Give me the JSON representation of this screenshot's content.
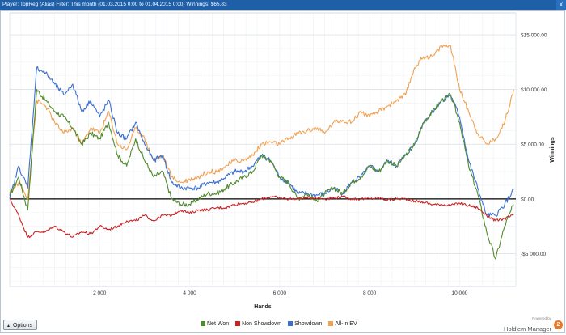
{
  "window": {
    "title": "Player: TopReg (Alias)  Filter: This month (01.03.2015 0:00 to 01.04.2015 0:00)  Winnings: $65.83",
    "close_label": "x"
  },
  "footer": {
    "options_label": "Options",
    "powered_by": "Powered by",
    "brand": "Hold'em Manager",
    "brand_badge": "2"
  },
  "chart_data": {
    "type": "line",
    "xlabel": "Hands",
    "ylabel": "Winnings",
    "xlim": [
      0,
      11250
    ],
    "ylim": [
      -8000,
      17000
    ],
    "x_ticks": [
      2000,
      4000,
      6000,
      8000,
      10000
    ],
    "x_tick_labels": [
      "2 000",
      "4 000",
      "6 000",
      "8 000",
      "10 000"
    ],
    "y_ticks": [
      -5000,
      0,
      5000,
      10000,
      15000
    ],
    "y_tick_labels": [
      "-$5 000.00",
      "$0.00",
      "$5 000.00",
      "$10 000.00",
      "$15 000.00"
    ],
    "grid": true,
    "legend_position": "bottom",
    "x": [
      0,
      200,
      400,
      600,
      800,
      1000,
      1200,
      1400,
      1600,
      1800,
      2000,
      2200,
      2400,
      2600,
      2800,
      3000,
      3200,
      3400,
      3600,
      3800,
      4000,
      4200,
      4400,
      4600,
      4800,
      5000,
      5200,
      5400,
      5600,
      5800,
      6000,
      6200,
      6400,
      6600,
      6800,
      7000,
      7200,
      7400,
      7600,
      7800,
      8000,
      8200,
      8400,
      8600,
      8800,
      9000,
      9200,
      9400,
      9600,
      9800,
      10000,
      10200,
      10400,
      10600,
      10800,
      11000,
      11200
    ],
    "series": [
      {
        "name": "Net Won",
        "color": "#4f8a2c",
        "values": [
          300,
          2000,
          -1000,
          10000,
          9000,
          8000,
          7500,
          6500,
          5000,
          6000,
          5500,
          7000,
          4000,
          3000,
          5500,
          3500,
          2000,
          2500,
          0,
          -500,
          -500,
          0,
          500,
          500,
          1000,
          1500,
          2000,
          2500,
          4000,
          3500,
          2000,
          1500,
          0,
          500,
          -200,
          500,
          1000,
          500,
          1500,
          2000,
          3000,
          2500,
          3500,
          3000,
          4000,
          5000,
          7000,
          8000,
          9000,
          9500,
          7000,
          3000,
          500,
          -3000,
          -5500,
          -2500,
          -500
        ]
      },
      {
        "name": "Non Showdown",
        "color": "#cc2222",
        "values": [
          0,
          -1500,
          -3500,
          -3000,
          -3000,
          -2500,
          -3000,
          -3500,
          -3000,
          -3200,
          -2500,
          -2800,
          -2500,
          -2000,
          -2000,
          -1500,
          -2000,
          -1500,
          -1500,
          -1000,
          -1300,
          -1000,
          -1000,
          -800,
          -800,
          -500,
          -400,
          -300,
          0,
          200,
          100,
          0,
          0,
          100,
          100,
          0,
          100,
          200,
          0,
          0,
          0,
          100,
          -100,
          0,
          0,
          -200,
          -300,
          -500,
          -500,
          -600,
          -400,
          -600,
          -800,
          -1500,
          -2000,
          -1800,
          -1500
        ]
      },
      {
        "name": "Showdown",
        "color": "#3a6fd0",
        "values": [
          0,
          3000,
          1000,
          12000,
          11500,
          10500,
          9500,
          10500,
          8000,
          9000,
          7500,
          9000,
          6000,
          5500,
          7000,
          5000,
          3500,
          4000,
          1500,
          1000,
          1000,
          1000,
          1500,
          1500,
          2000,
          2500,
          2500,
          3000,
          4000,
          3500,
          2000,
          1500,
          500,
          500,
          300,
          500,
          1000,
          500,
          1500,
          2000,
          3000,
          2500,
          3500,
          3000,
          4000,
          5000,
          7000,
          8000,
          9000,
          9500,
          7500,
          3500,
          1000,
          -1500,
          -1500,
          -500,
          800
        ]
      },
      {
        "name": "All-In EV",
        "color": "#f0a050",
        "values": [
          500,
          1500,
          0,
          9000,
          8500,
          7000,
          6000,
          6500,
          5000,
          6500,
          6000,
          8000,
          5000,
          4500,
          6500,
          5500,
          3500,
          4000,
          2000,
          1500,
          1800,
          2000,
          2500,
          2500,
          3000,
          3500,
          3500,
          4000,
          5000,
          5200,
          5000,
          5500,
          6000,
          6200,
          6500,
          6000,
          7000,
          7200,
          7000,
          8000,
          7500,
          8000,
          8500,
          9000,
          9500,
          12000,
          13000,
          13000,
          14000,
          14000,
          10000,
          8000,
          6000,
          5000,
          5500,
          7000,
          10000
        ]
      }
    ]
  }
}
